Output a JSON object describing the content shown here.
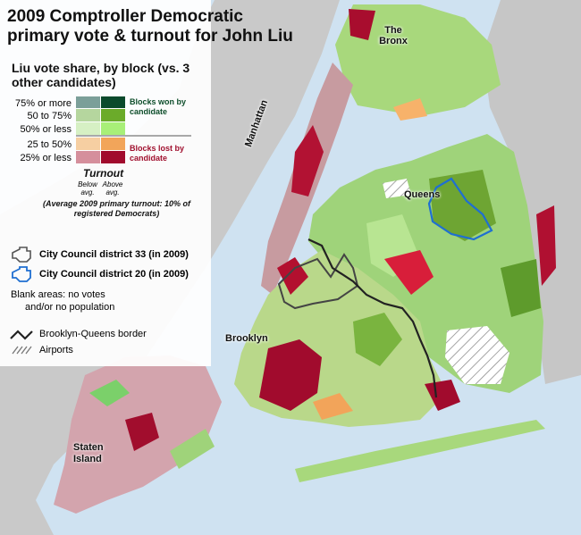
{
  "title": "2009 Comptroller Democratic primary vote & turnout for John Liu",
  "subtitle": "Liu vote share, by block (vs. 3 other candidates)",
  "legend": {
    "rows": [
      "75% or more",
      "50 to 75%",
      "50% or less",
      "25 to 50%",
      "25% or less"
    ],
    "won_label": "Blocks won by candidate",
    "lost_label": "Blocks lost by candidate",
    "turnout_title": "Turnout",
    "below_avg": "Below avg.",
    "above_avg": "Above avg.",
    "avg_note": "(Average 2009 primary turnout: 10% of registered Democrats)",
    "district_33": "City Council district 33 (in 2009)",
    "district_20": "City Council district 20 (in 2009)",
    "blank_note_1": "Blank areas: no votes",
    "blank_note_2": "and/or no population",
    "border": "Brooklyn-Queens border",
    "airports": "Airports",
    "colors": {
      "won_high_below": "#7b9f99",
      "won_high_above": "#0b4a2c",
      "won_mid_below": "#b5d69e",
      "won_mid_above": "#6bab2a",
      "won_low_below": "#d6f0c4",
      "won_low_above": "#a8ef78",
      "lost_mid_below": "#f6cfa2",
      "lost_mid_above": "#f2a55a",
      "lost_low_below": "#d58f9c",
      "lost_low_above": "#a10b2d",
      "district_20": "#1f6fd1",
      "district_33": "#555555"
    }
  },
  "places": {
    "bronx": "The Bronx",
    "manhattan": "Manhattan",
    "queens": "Queens",
    "brooklyn": "Brooklyn",
    "staten_island": "Staten Island"
  }
}
